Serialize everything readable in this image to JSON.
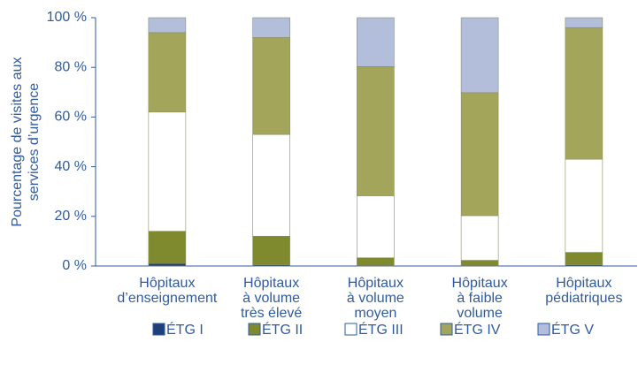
{
  "chart_data": {
    "type": "stacked_bar",
    "ylabel": [
      "Pourcentage de visites aux",
      "services d’urgence"
    ],
    "categories": [
      [
        "Hôpitaux",
        "d’enseignement"
      ],
      [
        "Hôpitaux",
        "à volume",
        "très élevé"
      ],
      [
        "Hôpitaux",
        "à volume",
        "moyen"
      ],
      [
        "Hôpitaux",
        "à faible",
        "volume"
      ],
      [
        "Hôpitaux",
        "pédiatriques"
      ]
    ],
    "series": [
      {
        "name": "ÉTG I",
        "color": "#1f3f7a",
        "values": [
          1,
          0.5,
          0.3,
          0.3,
          0.5
        ]
      },
      {
        "name": "ÉTG II",
        "color": "#7f8a2e",
        "values": [
          13,
          11.5,
          3,
          2,
          5
        ]
      },
      {
        "name": "ÉTG III",
        "color": "#ffffff",
        "values": [
          48,
          41,
          25,
          18,
          37.5
        ]
      },
      {
        "name": "ÉTG IV",
        "color": "#a3a55a",
        "values": [
          32,
          39,
          52,
          49.5,
          53
        ]
      },
      {
        "name": "ÉTG V",
        "color": "#b3bedb",
        "values": [
          6,
          8,
          19.7,
          30.2,
          4
        ]
      }
    ],
    "ylim": [
      0,
      100
    ],
    "yticks": [
      {
        "value": 0,
        "label": "0 %"
      },
      {
        "value": 20,
        "label": "20 %"
      },
      {
        "value": 40,
        "label": "40 %"
      },
      {
        "value": 60,
        "label": "60 %"
      },
      {
        "value": 80,
        "label": "80 %"
      },
      {
        "value": 100,
        "label": "100 %"
      }
    ]
  }
}
